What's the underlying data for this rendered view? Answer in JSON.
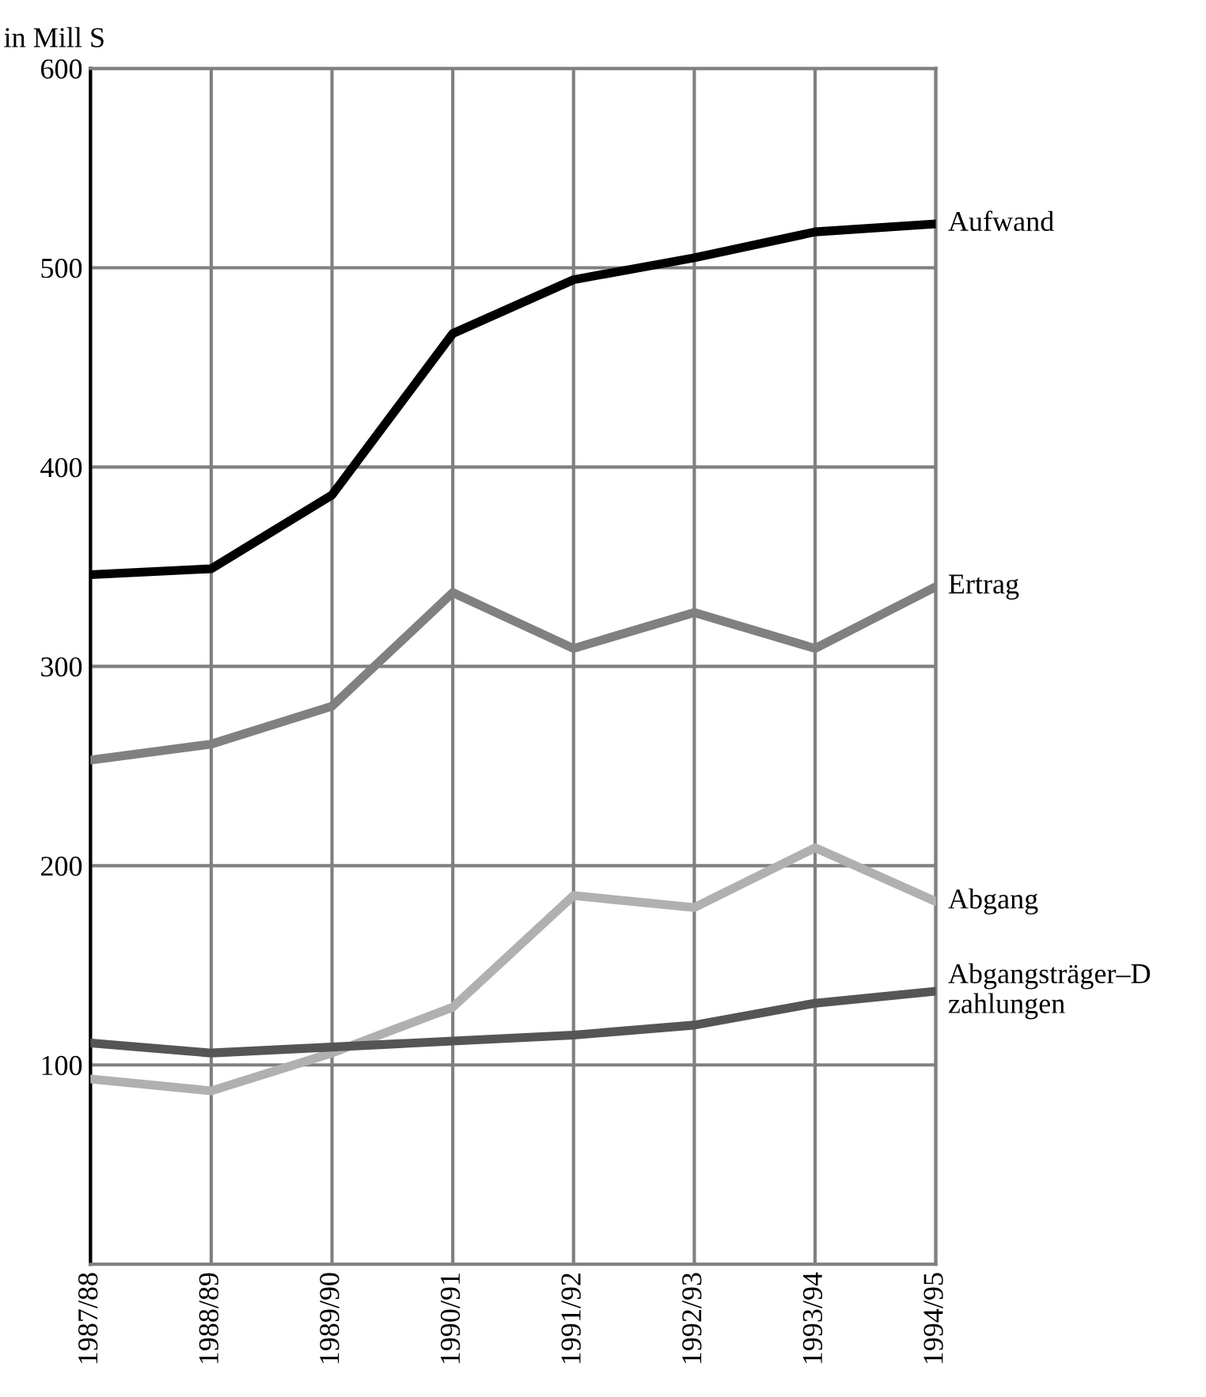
{
  "chart_data": {
    "type": "line",
    "ylabel": "in Mill S",
    "categories": [
      "1987/88",
      "1988/89",
      "1989/90",
      "1990/91",
      "1991/92",
      "1992/93",
      "1993/94",
      "1994/95"
    ],
    "ylim": [
      0,
      600
    ],
    "yticks": [
      {
        "value": 0,
        "label": null
      },
      100,
      200,
      300,
      400,
      500,
      600
    ],
    "grid": true,
    "legend": false,
    "marker": "none",
    "line_style": "solid",
    "series": [
      {
        "name": "Aufwand",
        "color": "#000000",
        "values": [
          346,
          349,
          386,
          467,
          494,
          505,
          518,
          522
        ]
      },
      {
        "name": "Ertrag",
        "color": "#808080",
        "values": [
          253,
          261,
          280,
          337,
          309,
          327,
          309,
          340
        ]
      },
      {
        "name": "Abgang",
        "color": "#b0b0b0",
        "values": [
          93,
          87,
          106,
          129,
          185,
          179,
          209,
          182
        ]
      },
      {
        "name": "Abgangsträger–D\nzahlungen",
        "color": "#555555",
        "values": [
          111,
          106,
          109,
          112,
          115,
          120,
          131,
          137
        ]
      }
    ]
  }
}
